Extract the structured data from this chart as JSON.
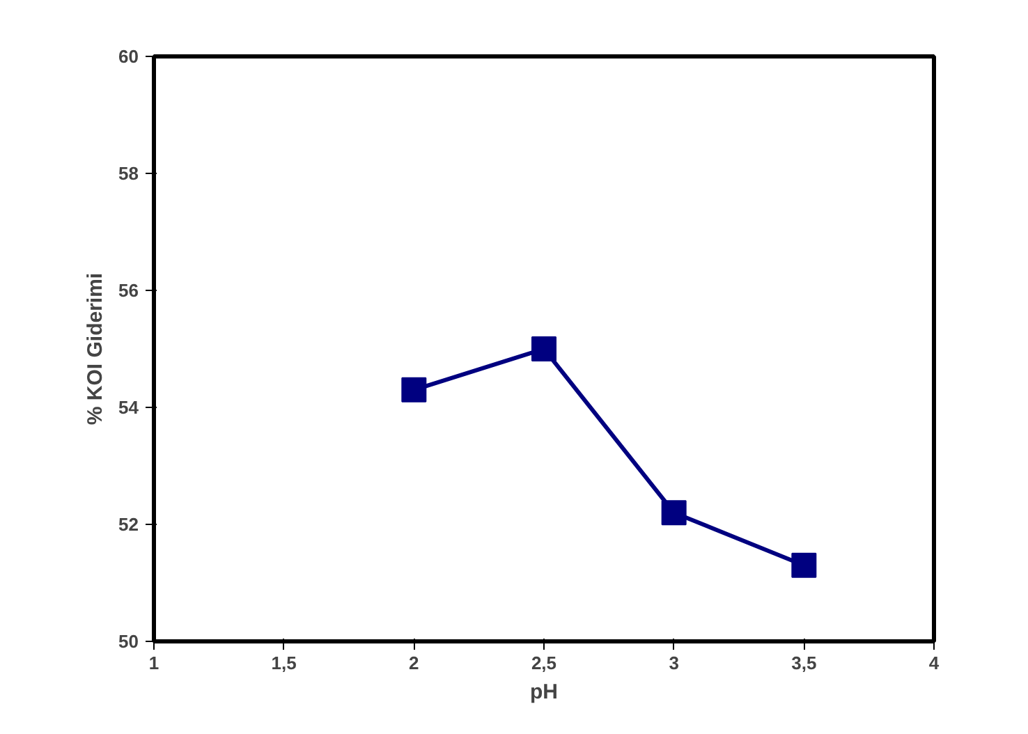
{
  "chart_data": {
    "type": "line",
    "xlabel": "pH",
    "ylabel": "% KOI Giderimi",
    "x": [
      2,
      2.5,
      3,
      3.5
    ],
    "series": [
      {
        "color": "#000080",
        "values": [
          54.3,
          55.0,
          52.2,
          51.3
        ]
      }
    ],
    "xlim": [
      1,
      4
    ],
    "xticks": [
      1,
      {
        "value": 1.5,
        "label": "1,5"
      },
      2,
      {
        "value": 2.5,
        "label": "2,5"
      },
      3,
      {
        "value": 3.5,
        "label": "3,5"
      },
      4
    ],
    "ylim": [
      50,
      60
    ],
    "yticks": [
      50,
      52,
      54,
      56,
      58,
      60
    ],
    "marker": "square",
    "line_style": "solid",
    "grid": false
  }
}
